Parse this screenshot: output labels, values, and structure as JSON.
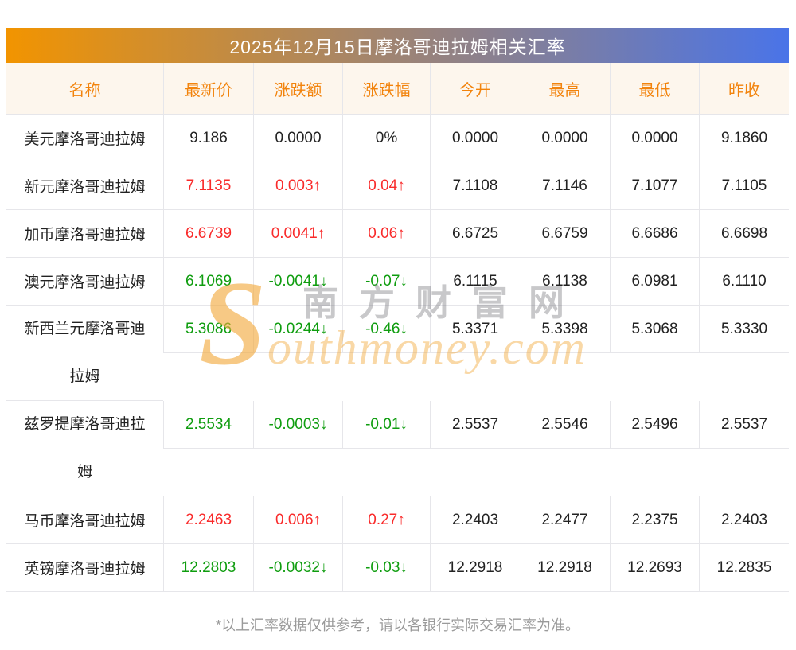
{
  "title": {
    "text": "2025年12月15日摩洛哥迪拉姆相关汇率"
  },
  "header": {
    "columns": [
      "名称",
      "最新价",
      "涨跌额",
      "涨跌幅",
      "今开",
      "最高",
      "最低",
      "昨收"
    ]
  },
  "rows": [
    {
      "name": "美元摩洛哥迪拉姆",
      "latest": "9.186",
      "change": "0.0000",
      "change_pct": "0%",
      "open": "0.0000",
      "high": "0.0000",
      "low": "0.0000",
      "prev_close": "9.1860",
      "trend": "flat",
      "tall": false
    },
    {
      "name": "新元摩洛哥迪拉姆",
      "latest": "7.1135",
      "change": "0.003↑",
      "change_pct": "0.04↑",
      "open": "7.1108",
      "high": "7.1146",
      "low": "7.1077",
      "prev_close": "7.1105",
      "trend": "up",
      "tall": false
    },
    {
      "name": "加币摩洛哥迪拉姆",
      "latest": "6.6739",
      "change": "0.0041↑",
      "change_pct": "0.06↑",
      "open": "6.6725",
      "high": "6.6759",
      "low": "6.6686",
      "prev_close": "6.6698",
      "trend": "up",
      "tall": false
    },
    {
      "name": "澳元摩洛哥迪拉姆",
      "latest": "6.1069",
      "change": "-0.0041↓",
      "change_pct": "-0.07↓",
      "open": "6.1115",
      "high": "6.1138",
      "low": "6.0981",
      "prev_close": "6.1110",
      "trend": "down",
      "tall": false
    },
    {
      "name": "新西兰元摩洛哥迪拉姆",
      "latest": "5.3086",
      "change": "-0.0244↓",
      "change_pct": "-0.46↓",
      "open": "5.3371",
      "high": "5.3398",
      "low": "5.3068",
      "prev_close": "5.3330",
      "trend": "down",
      "tall": true
    },
    {
      "name": "兹罗提摩洛哥迪拉姆",
      "latest": "2.5534",
      "change": "-0.0003↓",
      "change_pct": "-0.01↓",
      "open": "2.5537",
      "high": "2.5546",
      "low": "2.5496",
      "prev_close": "2.5537",
      "trend": "down",
      "tall": true
    },
    {
      "name": "马币摩洛哥迪拉姆",
      "latest": "2.2463",
      "change": "0.006↑",
      "change_pct": "0.27↑",
      "open": "2.2403",
      "high": "2.2477",
      "low": "2.2375",
      "prev_close": "2.2403",
      "trend": "up",
      "tall": false
    },
    {
      "name": "英镑摩洛哥迪拉姆",
      "latest": "12.2803",
      "change": "-0.0032↓",
      "change_pct": "-0.03↓",
      "open": "12.2918",
      "high": "12.2918",
      "low": "12.2693",
      "prev_close": "12.2835",
      "trend": "down",
      "tall": false
    }
  ],
  "footer": {
    "note": "*以上汇率数据仅供参考，请以各银行实际交易汇率为准。"
  },
  "watermark": {
    "logo": "S",
    "text_cn": "南方财富网",
    "text_en": "outhmoney.com"
  },
  "colors": {
    "up": "#f92b2b",
    "down": "#0f9d0f",
    "neutral": "#222222",
    "line": "#e6e6ea",
    "header_bg": "#fdf6ed",
    "header_text": "#f2830c",
    "title_left": "#f29400",
    "title_right": "#4a74e8",
    "title_text": "#ffffff",
    "footer_text": "#9a9a9a",
    "wm_orange": "#f3a93c",
    "wm_gray": "#7d7d82"
  }
}
